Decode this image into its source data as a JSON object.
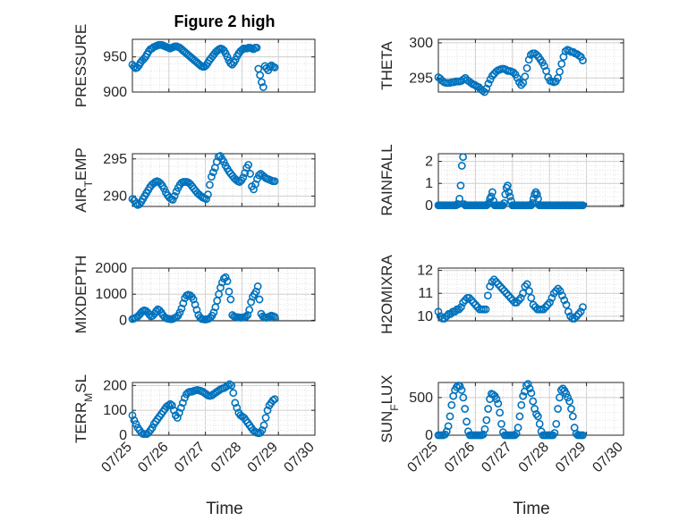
{
  "title": "Figure 2 high",
  "colors": {
    "marker": "#0072BD",
    "axis": "#262626",
    "grid": "#bdbdbd"
  },
  "chart_data": [
    {
      "type": "scatter",
      "ylabel": "PRESSURE",
      "xlabel": "",
      "title": "Figure 2 high",
      "xlim": [
        "07/25",
        "07/30"
      ],
      "ylim": [
        900,
        975
      ],
      "yticks": [
        900,
        950
      ],
      "x_day_start": 25,
      "y": [
        939,
        936,
        934,
        935,
        938,
        942,
        945,
        947,
        950,
        954,
        958,
        961,
        962,
        964,
        965,
        966,
        967,
        967,
        967,
        966,
        965,
        964,
        963,
        962,
        963,
        964,
        965,
        965,
        964,
        963,
        961,
        959,
        957,
        955,
        953,
        951,
        949,
        947,
        945,
        943,
        941,
        939,
        937,
        936,
        936,
        938,
        941,
        945,
        948,
        951,
        954,
        957,
        959,
        961,
        962,
        961,
        959,
        955,
        950,
        945,
        941,
        939,
        942,
        946,
        951,
        955,
        958,
        960,
        962,
        962,
        962,
        963,
        963,
        962,
        961,
        963,
        963,
        933,
        924,
        914,
        907,
        937,
        934,
        931,
        936,
        938,
        936,
        935
      ]
    },
    {
      "type": "scatter",
      "ylabel": "THETA",
      "xlabel": "",
      "xlim": [
        "07/25",
        "07/30"
      ],
      "ylim": [
        293,
        300.5
      ],
      "yticks": [
        295,
        300
      ],
      "x_day_start": 25,
      "y": [
        295.1,
        294.9,
        294.6,
        294.4,
        294.3,
        294.3,
        294.3,
        294.4,
        294.4,
        294.5,
        294.5,
        294.5,
        294.6,
        294.8,
        295.0,
        294.7,
        294.5,
        294.3,
        294.1,
        294.0,
        293.8,
        293.7,
        293.4,
        293.2,
        293.0,
        293.5,
        294.2,
        294.8,
        295.3,
        295.6,
        295.9,
        296.1,
        296.2,
        296.3,
        296.3,
        296.2,
        296.0,
        296.0,
        295.9,
        295.8,
        295.5,
        295.0,
        294.4,
        294.0,
        294.3,
        295.2,
        296.4,
        297.6,
        298.3,
        298.5,
        298.5,
        298.3,
        298.0,
        297.6,
        297.2,
        296.7,
        296.0,
        295.1,
        294.6,
        294.5,
        294.4,
        294.5,
        295.0,
        295.9,
        297.0,
        298.0,
        298.8,
        299.0,
        298.9,
        298.7,
        298.7,
        298.5,
        298.4,
        298.2,
        298.0,
        297.5
      ]
    },
    {
      "type": "scatter",
      "ylabel": "AIR_TEMP",
      "xlim": [
        "07/25",
        "07/30"
      ],
      "ylim": [
        288.6,
        295.7
      ],
      "yticks": [
        290,
        295
      ],
      "x_day_start": 25,
      "y": [
        289.6,
        289.4,
        289.0,
        288.8,
        288.9,
        289.2,
        289.6,
        290.0,
        290.4,
        290.8,
        291.2,
        291.5,
        291.7,
        291.9,
        292.0,
        291.9,
        291.7,
        291.4,
        291.0,
        290.5,
        290.1,
        289.8,
        289.6,
        289.5,
        290.0,
        290.6,
        291.1,
        291.5,
        291.8,
        291.9,
        291.9,
        291.9,
        291.8,
        291.6,
        291.3,
        291.0,
        290.7,
        290.4,
        290.2,
        290.0,
        289.8,
        289.7,
        289.6,
        290.2,
        291.5,
        292.6,
        293.2,
        293.8,
        294.6,
        295.3,
        295.4,
        295.0,
        294.6,
        294.1,
        293.7,
        293.3,
        293.0,
        292.7,
        292.4,
        292.2,
        292.0,
        291.9,
        292.1,
        292.5,
        293.1,
        293.8,
        294.2,
        293.0,
        291.3,
        290.9,
        291.6,
        292.3,
        292.8,
        293.0,
        292.8,
        292.6,
        292.4,
        292.3,
        292.2,
        292.1,
        292.0,
        292.0
      ]
    },
    {
      "type": "scatter",
      "ylabel": "RAINFALL",
      "xlim": [
        "07/25",
        "07/30"
      ],
      "ylim": [
        -0.05,
        2.35
      ],
      "yticks": [
        0,
        1,
        2
      ],
      "x_day_start": 25,
      "y": [
        0,
        0,
        0,
        0,
        0,
        0,
        0,
        0,
        0,
        0,
        0,
        0,
        0,
        0,
        0,
        0,
        0.05,
        0.05,
        0.3,
        0.9,
        1.8,
        2.2,
        0.05,
        0,
        0,
        0,
        0,
        0,
        0,
        0,
        0,
        0,
        0,
        0,
        0,
        0,
        0,
        0,
        0,
        0,
        0,
        0,
        0.05,
        0.1,
        0.3,
        0.4,
        0.6,
        0.2,
        0,
        0,
        0,
        0,
        0,
        0,
        0,
        0,
        0.1,
        0.5,
        0.8,
        0.9,
        0.6,
        0.4,
        0.2,
        0,
        0,
        0,
        0,
        0,
        0,
        0,
        0,
        0,
        0,
        0,
        0,
        0,
        0,
        0,
        0,
        0,
        0.1,
        0.3,
        0.5,
        0.6,
        0.5,
        0.3,
        0,
        0,
        0,
        0,
        0,
        0,
        0,
        0,
        0,
        0,
        0,
        0,
        0,
        0,
        0,
        0,
        0,
        0,
        0,
        0,
        0,
        0,
        0,
        0,
        0,
        0,
        0,
        0,
        0,
        0,
        0,
        0,
        0,
        0,
        0,
        0,
        0,
        0
      ]
    },
    {
      "type": "scatter",
      "ylabel": "MIXDEPTH",
      "xlim": [
        "07/25",
        "07/30"
      ],
      "ylim": [
        -20,
        2000
      ],
      "yticks": [
        0,
        1000,
        2000
      ],
      "x_day_start": 25,
      "y": [
        50,
        70,
        100,
        140,
        200,
        280,
        350,
        380,
        360,
        300,
        220,
        150,
        180,
        250,
        350,
        420,
        380,
        300,
        200,
        120,
        80,
        60,
        50,
        40,
        60,
        90,
        120,
        180,
        300,
        450,
        650,
        850,
        950,
        980,
        960,
        900,
        800,
        600,
        400,
        200,
        100,
        50,
        40,
        30,
        40,
        60,
        100,
        180,
        300,
        500,
        750,
        1000,
        1250,
        1450,
        1600,
        1650,
        1500,
        1100,
        800,
        200,
        150,
        130,
        120,
        110,
        100,
        110,
        120,
        140,
        200,
        400,
        700,
        900,
        1000,
        1100,
        1300,
        800,
        250,
        150,
        120,
        100,
        110,
        150,
        180,
        160,
        130
      ]
    },
    {
      "type": "scatter",
      "ylabel": "H2OMIXRA",
      "xlim": [
        "07/25",
        "07/30"
      ],
      "ylim": [
        9.8,
        12.1
      ],
      "yticks": [
        10,
        11,
        12
      ],
      "x_day_start": 25,
      "y": [
        10.2,
        10.0,
        9.9,
        9.9,
        10.0,
        10.1,
        10.1,
        10.2,
        10.2,
        10.3,
        10.3,
        10.4,
        10.6,
        10.7,
        10.8,
        10.8,
        10.7,
        10.6,
        10.5,
        10.4,
        10.3,
        10.3,
        10.3,
        10.3,
        10.9,
        11.3,
        11.5,
        11.6,
        11.5,
        11.4,
        11.3,
        11.2,
        11.1,
        11.0,
        10.9,
        10.8,
        10.7,
        10.6,
        10.6,
        10.7,
        10.8,
        11.0,
        11.3,
        11.4,
        11.1,
        10.8,
        10.5,
        10.4,
        10.3,
        10.3,
        10.3,
        10.3,
        10.4,
        10.5,
        10.6,
        10.8,
        11.0,
        11.1,
        11.2,
        11.1,
        10.9,
        10.7,
        10.5,
        10.2,
        10.0,
        9.9,
        9.9,
        10.0,
        10.1,
        10.2,
        10.4
      ]
    },
    {
      "type": "scatter",
      "ylabel": "TERR_MSL",
      "xlim": [
        "07/25",
        "07/30"
      ],
      "ylim": [
        0,
        212
      ],
      "yticks": [
        0,
        100,
        200
      ],
      "x_day_start": 25,
      "y": [
        80,
        60,
        45,
        30,
        20,
        10,
        5,
        5,
        5,
        10,
        20,
        30,
        45,
        55,
        65,
        75,
        85,
        95,
        105,
        115,
        120,
        125,
        120,
        100,
        80,
        70,
        90,
        110,
        130,
        150,
        165,
        172,
        175,
        175,
        178,
        180,
        182,
        180,
        178,
        175,
        170,
        165,
        160,
        158,
        160,
        165,
        170,
        175,
        180,
        185,
        188,
        190,
        195,
        200,
        205,
        200,
        170,
        130,
        110,
        90,
        80,
        75,
        70,
        60,
        50,
        40,
        30,
        20,
        15,
        10,
        8,
        10,
        20,
        40,
        70,
        100,
        120,
        130,
        140,
        145
      ]
    },
    {
      "type": "scatter",
      "ylabel": "SUN_FLUX",
      "xlim": [
        "07/25",
        "07/30"
      ],
      "ylim": [
        0,
        700
      ],
      "yticks": [
        0,
        500
      ],
      "x_day_start": 25,
      "y": [
        0,
        0,
        0,
        0,
        10,
        50,
        120,
        250,
        400,
        520,
        600,
        640,
        660,
        650,
        600,
        500,
        350,
        180,
        50,
        0,
        0,
        0,
        0,
        0,
        0,
        0,
        0,
        10,
        80,
        200,
        350,
        480,
        550,
        540,
        520,
        480,
        420,
        300,
        150,
        40,
        0,
        0,
        0,
        0,
        0,
        0,
        0,
        20,
        100,
        250,
        400,
        520,
        580,
        660,
        680,
        620,
        560,
        450,
        350,
        280,
        250,
        150,
        50,
        0,
        0,
        0,
        0,
        0,
        0,
        0,
        30,
        150,
        350,
        500,
        600,
        620,
        590,
        550,
        500,
        450,
        350,
        250,
        100,
        20,
        0,
        0,
        0,
        0
      ]
    }
  ],
  "x_tick_labels": [
    "07/25",
    "07/26",
    "07/27",
    "07/28",
    "07/29",
    "07/30"
  ],
  "x_axis_label": "Time",
  "y_labels": {
    "air_temp_main": "AIR",
    "air_temp_sub": "T",
    "air_temp_rest": "EMP",
    "terr_main": "TERR",
    "terr_sub": "M",
    "terr_rest": "SL",
    "sun_main": "SUN",
    "sun_sub": "F",
    "sun_rest": "LUX"
  }
}
